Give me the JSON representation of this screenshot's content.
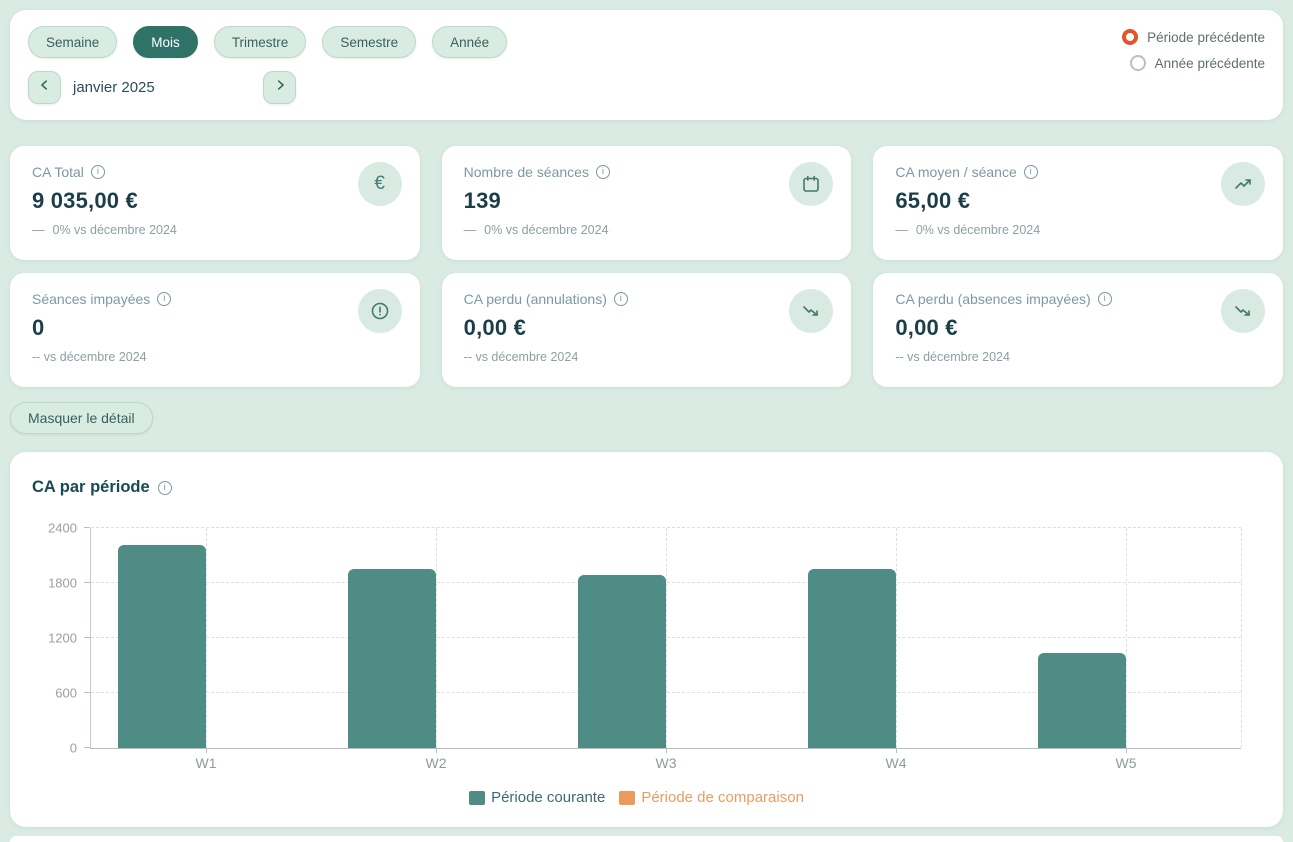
{
  "theme": {
    "page_bg": "#d9ebe2",
    "card_bg": "#ffffff",
    "accent_teal": "#2e7268",
    "bar_teal": "#4e8c85",
    "comparison_orange": "#ea9b5c",
    "radio_orange": "#e4532c"
  },
  "toolbar": {
    "period_tabs": [
      {
        "label": "Semaine",
        "active": false
      },
      {
        "label": "Mois",
        "active": true
      },
      {
        "label": "Trimestre",
        "active": false
      },
      {
        "label": "Semestre",
        "active": false
      },
      {
        "label": "Année",
        "active": false
      }
    ],
    "current_period": "janvier 2025",
    "comparison_options": [
      {
        "label": "Période précédente",
        "selected": true
      },
      {
        "label": "Année précédente",
        "selected": false
      }
    ]
  },
  "kpi_cards": [
    {
      "title": "CA Total",
      "value": "9 035,00 €",
      "delta_icon": "—",
      "delta_text": "0% vs décembre 2024",
      "icon": "euro-icon"
    },
    {
      "title": "Nombre de séances",
      "value": "139",
      "delta_icon": "—",
      "delta_text": "0% vs décembre 2024",
      "icon": "calendar-icon"
    },
    {
      "title": "CA moyen / séance",
      "value": "65,00 €",
      "delta_icon": "—",
      "delta_text": "0% vs décembre 2024",
      "icon": "trend-up-icon"
    },
    {
      "title": "Séances impayées",
      "value": "0",
      "delta_icon": "",
      "delta_text": "-- vs décembre 2024",
      "icon": "alert-icon"
    },
    {
      "title": "CA perdu (annulations)",
      "value": "0,00 €",
      "delta_icon": "",
      "delta_text": "-- vs décembre 2024",
      "icon": "trend-down-icon"
    },
    {
      "title": "CA perdu (absences impayées)",
      "value": "0,00 €",
      "delta_icon": "",
      "delta_text": "-- vs décembre 2024",
      "icon": "trend-down-icon"
    }
  ],
  "detail_toggle": {
    "label": "Masquer le détail"
  },
  "chart_data": {
    "type": "bar",
    "title": "CA par période",
    "categories": [
      "W1",
      "W2",
      "W3",
      "W4",
      "W5"
    ],
    "series": [
      {
        "name": "Période courante",
        "color": "#4e8c85",
        "values": [
          2210,
          1950,
          1885,
          1950,
          1040
        ]
      },
      {
        "name": "Période de comparaison",
        "color": "#ea9b5c",
        "values": [
          0,
          0,
          0,
          0,
          0
        ]
      }
    ],
    "ylim": [
      0,
      2400
    ],
    "yticks": [
      0,
      600,
      1200,
      1800,
      2400
    ],
    "grid": "dashed",
    "legend_position": "bottom"
  }
}
